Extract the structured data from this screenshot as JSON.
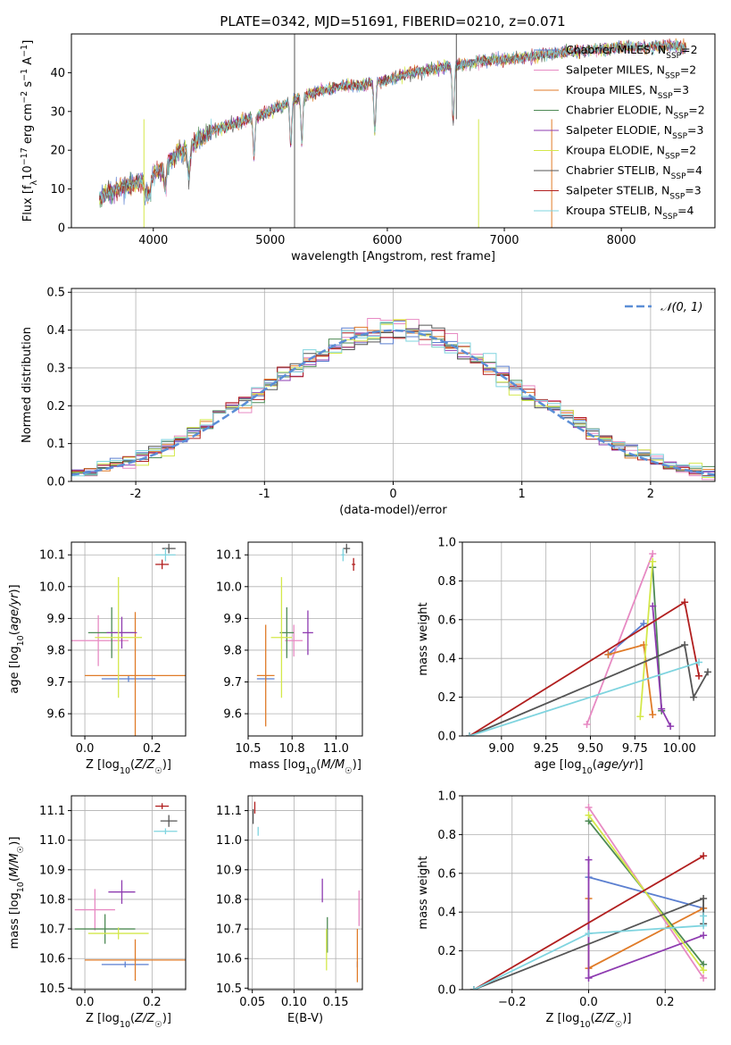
{
  "figure": {
    "title": "PLATE=0342, MJD=51691, FIBERID=0210, z=0.071",
    "models": [
      {
        "name": "Chabrier MILES",
        "nssp": "2",
        "color": "#5b7fd0"
      },
      {
        "name": "Salpeter MILES",
        "nssp": "2",
        "color": "#e78ac3"
      },
      {
        "name": "Kroupa MILES",
        "nssp": "3",
        "color": "#e07b28"
      },
      {
        "name": "Chabrier ELODIE",
        "nssp": "2",
        "color": "#4e8a55"
      },
      {
        "name": "Salpeter ELODIE",
        "nssp": "3",
        "color": "#8e3bb0"
      },
      {
        "name": "Kroupa ELODIE",
        "nssp": "2",
        "color": "#d4e84a"
      },
      {
        "name": "Chabrier STELIB",
        "nssp": "4",
        "color": "#555555"
      },
      {
        "name": "Salpeter STELIB",
        "nssp": "3",
        "color": "#b11f1f"
      },
      {
        "name": "Kroupa STELIB",
        "nssp": "4",
        "color": "#7fd4df"
      }
    ]
  },
  "chart_data": [
    {
      "id": "spectrum",
      "type": "line",
      "xlabel": "wavelength [Angstrom, rest frame]",
      "ylabel": "Flux [f_λ10^-17 erg cm^-2 s^-1 A^-1]",
      "xlim": [
        3300,
        8800
      ],
      "ylim": [
        0,
        50
      ],
      "xticks": [
        4000,
        5000,
        6000,
        7000,
        8000
      ],
      "yticks": [
        0,
        10,
        20,
        30,
        40
      ],
      "anchors_x": [
        3550,
        3700,
        3800,
        3900,
        4000,
        4100,
        4200,
        4300,
        4400,
        4500,
        4600,
        4800,
        5000,
        5200,
        5400,
        5600,
        5800,
        6000,
        6200,
        6400,
        6600,
        6800,
        7000,
        7200,
        7400,
        7600,
        7800,
        8000,
        8200,
        8400,
        8600
      ],
      "anchors_y": [
        8,
        10,
        11,
        12,
        14,
        16,
        19,
        21,
        23,
        25,
        26,
        28,
        30,
        33,
        35,
        36.5,
        37,
        38,
        40,
        41,
        42,
        43,
        43.5,
        44,
        45,
        45.5,
        46,
        46.5,
        46.5,
        47,
        46.5
      ],
      "absorption_lines_x": [
        3934,
        3969,
        4102,
        4304,
        4861,
        5175,
        5270,
        5893,
        6563
      ],
      "spikes": [
        {
          "x": 3920,
          "y": 0,
          "model": 5
        },
        {
          "x": 5207,
          "y": 0,
          "model": 6
        },
        {
          "x": 5207,
          "y": 50,
          "model": 6
        },
        {
          "x": 6780,
          "y": 0,
          "model": 5
        },
        {
          "x": 7405,
          "y": 0,
          "model": 2
        },
        {
          "x": 6590,
          "y": 50,
          "model": 6
        }
      ],
      "note": "Nine noisy model spectra overlapping; continuum anchor values estimated from axes."
    },
    {
      "id": "residual-histogram",
      "type": "bar",
      "xlabel": "(data-model)/error",
      "ylabel": "Normed distribution",
      "xlim": [
        -2.5,
        2.5
      ],
      "ylim": [
        0,
        0.51
      ],
      "xticks": [
        -2,
        -1,
        0,
        1,
        2
      ],
      "yticks": [
        0,
        0.1,
        0.2,
        0.3,
        0.4,
        0.5
      ],
      "bin_width": 0.1,
      "reference_curve": {
        "label": "𝒩(0, 1)",
        "color": "#5b8ed6",
        "mean": 0,
        "sigma": 1
      }
    },
    {
      "id": "age-vs-Z",
      "type": "scatter",
      "xlabel": "Z [log10(Z/Z☉)]",
      "ylabel": "age [log10(age/yr)]",
      "xlim": [
        -0.04,
        0.3
      ],
      "ylim": [
        9.53,
        10.14
      ],
      "xticks": [
        0.0,
        0.2
      ],
      "yticks": [
        9.6,
        9.7,
        9.8,
        9.9,
        10.0,
        10.1
      ],
      "points": [
        {
          "model": 0,
          "x": 0.13,
          "y": 9.71,
          "xerr": 0.08,
          "yerr": 0.01
        },
        {
          "model": 1,
          "x": 0.04,
          "y": 9.83,
          "xerr": 0.09,
          "yerr": 0.08
        },
        {
          "model": 2,
          "x": 0.15,
          "y": 9.72,
          "xerr": 0.15,
          "yerr": 0.2
        },
        {
          "model": 3,
          "x": 0.08,
          "y": 9.855,
          "xerr": 0.07,
          "yerr": 0.08
        },
        {
          "model": 4,
          "x": 0.11,
          "y": 9.855,
          "xerr": 0.045,
          "yerr": 0.05
        },
        {
          "model": 5,
          "x": 0.1,
          "y": 9.84,
          "xerr": 0.07,
          "yerr": 0.19
        },
        {
          "model": 6,
          "x": 0.25,
          "y": 10.12,
          "xerr": 0.02,
          "yerr": 0.015
        },
        {
          "model": 7,
          "x": 0.23,
          "y": 10.07,
          "xerr": 0.02,
          "yerr": 0.015
        },
        {
          "model": 8,
          "x": 0.24,
          "y": 10.1,
          "xerr": 0.03,
          "yerr": 0.02
        }
      ]
    },
    {
      "id": "age-vs-mass",
      "type": "scatter",
      "xlabel": "mass [log10(M/M☉)]",
      "ylabel": "",
      "xlim": [
        10.5,
        11.15
      ],
      "ylim": [
        9.53,
        10.14
      ],
      "xticks": [
        10.5,
        10.75,
        11.0
      ],
      "yticks": [
        9.6,
        9.7,
        9.8,
        9.9,
        10.0,
        10.1
      ],
      "points": [
        {
          "model": 0,
          "x": 10.6,
          "y": 9.71,
          "xerr": 0.05,
          "yerr": 0.01
        },
        {
          "model": 1,
          "x": 10.76,
          "y": 9.83,
          "xerr": 0.05,
          "yerr": 0.05
        },
        {
          "model": 2,
          "x": 10.6,
          "y": 9.72,
          "xerr": 0.05,
          "yerr": 0.16
        },
        {
          "model": 3,
          "x": 10.72,
          "y": 9.855,
          "xerr": 0.04,
          "yerr": 0.08
        },
        {
          "model": 4,
          "x": 10.84,
          "y": 9.855,
          "xerr": 0.03,
          "yerr": 0.07
        },
        {
          "model": 5,
          "x": 10.69,
          "y": 9.84,
          "xerr": 0.06,
          "yerr": 0.19
        },
        {
          "model": 6,
          "x": 11.06,
          "y": 10.12,
          "xerr": 0.02,
          "yerr": 0.015
        },
        {
          "model": 7,
          "x": 11.1,
          "y": 10.07,
          "xerr": 0.01,
          "yerr": 0.02
        },
        {
          "model": 8,
          "x": 11.04,
          "y": 10.1,
          "xerr": 0.01,
          "yerr": 0.02
        }
      ]
    },
    {
      "id": "massweight-vs-age",
      "type": "line",
      "xlabel": "age [log10(age/yr)]",
      "ylabel": "mass weight",
      "xlim": [
        8.78,
        10.2
      ],
      "ylim": [
        0,
        1
      ],
      "xticks": [
        9.0,
        9.25,
        9.5,
        9.75,
        10.0
      ],
      "yticks": [
        0.0,
        0.2,
        0.4,
        0.6,
        0.8,
        1.0
      ],
      "lines": [
        {
          "model": 0,
          "x": [
            9.6,
            9.8
          ],
          "y": [
            0.42,
            0.58
          ]
        },
        {
          "model": 1,
          "x": [
            9.48,
            9.85
          ],
          "y": [
            0.06,
            0.94
          ]
        },
        {
          "model": 2,
          "x": [
            9.6,
            9.8,
            9.85
          ],
          "y": [
            0.42,
            0.47,
            0.11
          ]
        },
        {
          "model": 3,
          "x": [
            9.85,
            9.9
          ],
          "y": [
            0.87,
            0.13
          ]
        },
        {
          "model": 4,
          "x": [
            9.85,
            9.9,
            9.95
          ],
          "y": [
            0.67,
            0.14,
            0.05
          ]
        },
        {
          "model": 5,
          "x": [
            9.78,
            9.85
          ],
          "y": [
            0.1,
            0.9
          ]
        },
        {
          "model": 6,
          "x": [
            8.82,
            10.03,
            10.08,
            10.16
          ],
          "y": [
            0,
            0.47,
            0.2,
            0.33
          ]
        },
        {
          "model": 7,
          "x": [
            8.82,
            10.03,
            10.11
          ],
          "y": [
            0,
            0.69,
            0.31
          ]
        },
        {
          "model": 8,
          "x": [
            8.82,
            10.11
          ],
          "y": [
            0,
            0.38
          ]
        }
      ]
    },
    {
      "id": "mass-vs-Z",
      "type": "scatter",
      "xlabel": "Z [log10(Z/Z☉)]",
      "ylabel": "mass [log10(M/M☉)]",
      "xlim": [
        -0.04,
        0.3
      ],
      "ylim": [
        10.495,
        11.15
      ],
      "xticks": [
        0.0,
        0.2
      ],
      "yticks": [
        10.5,
        10.6,
        10.7,
        10.8,
        10.9,
        11.0,
        11.1
      ],
      "points": [
        {
          "model": 0,
          "x": 0.12,
          "y": 10.58,
          "xerr": 0.07,
          "yerr": 0.01
        },
        {
          "model": 1,
          "x": 0.03,
          "y": 10.765,
          "xerr": 0.06,
          "yerr": 0.07
        },
        {
          "model": 2,
          "x": 0.15,
          "y": 10.595,
          "xerr": 0.15,
          "yerr": 0.07
        },
        {
          "model": 3,
          "x": 0.06,
          "y": 10.7,
          "xerr": 0.09,
          "yerr": 0.05
        },
        {
          "model": 4,
          "x": 0.11,
          "y": 10.825,
          "xerr": 0.04,
          "yerr": 0.04
        },
        {
          "model": 5,
          "x": 0.1,
          "y": 10.685,
          "xerr": 0.09,
          "yerr": 0.02
        },
        {
          "model": 6,
          "x": 0.25,
          "y": 11.065,
          "xerr": 0.025,
          "yerr": 0.02
        },
        {
          "model": 7,
          "x": 0.23,
          "y": 11.115,
          "xerr": 0.02,
          "yerr": 0.01
        },
        {
          "model": 8,
          "x": 0.24,
          "y": 11.03,
          "xerr": 0.035,
          "yerr": 0.01
        }
      ]
    },
    {
      "id": "mass-vs-EBV",
      "type": "scatter",
      "xlabel": "E(B-V)",
      "ylabel": "",
      "xlim": [
        0.045,
        0.182
      ],
      "ylim": [
        10.495,
        11.15
      ],
      "xticks": [
        0.05,
        0.1,
        0.15
      ],
      "yticks": [
        10.5,
        10.6,
        10.7,
        10.8,
        10.9,
        11.0,
        11.1
      ],
      "points": [
        {
          "model": 0,
          "x": 0.176,
          "y": 10.58,
          "xerr": 0,
          "yerr": 0.01
        },
        {
          "model": 1,
          "x": 0.178,
          "y": 10.77,
          "xerr": 0,
          "yerr": 0.06
        },
        {
          "model": 2,
          "x": 0.176,
          "y": 10.61,
          "xerr": 0,
          "yerr": 0.09
        },
        {
          "model": 3,
          "x": 0.14,
          "y": 10.68,
          "xerr": 0,
          "yerr": 0.06
        },
        {
          "model": 4,
          "x": 0.134,
          "y": 10.83,
          "xerr": 0,
          "yerr": 0.04
        },
        {
          "model": 5,
          "x": 0.139,
          "y": 10.63,
          "xerr": 0,
          "yerr": 0.07
        },
        {
          "model": 6,
          "x": 0.051,
          "y": 11.08,
          "xerr": 0,
          "yerr": 0.025
        },
        {
          "model": 7,
          "x": 0.053,
          "y": 11.11,
          "xerr": 0,
          "yerr": 0.02
        },
        {
          "model": 8,
          "x": 0.057,
          "y": 11.03,
          "xerr": 0,
          "yerr": 0.015
        }
      ]
    },
    {
      "id": "massweight-vs-Z",
      "type": "line",
      "xlabel": "Z [log10(Z/Z☉)]",
      "ylabel": "mass weight",
      "xlim": [
        -0.33,
        0.33
      ],
      "ylim": [
        0,
        1
      ],
      "xticks": [
        -0.2,
        0.0,
        0.2
      ],
      "yticks": [
        0.0,
        0.2,
        0.4,
        0.6,
        0.8,
        1.0
      ],
      "lines": [
        {
          "model": 0,
          "x": [
            0.0,
            0.3
          ],
          "y": [
            0.58,
            0.42
          ]
        },
        {
          "model": 1,
          "x": [
            0.0,
            0.3
          ],
          "y": [
            0.94,
            0.06
          ]
        },
        {
          "model": 2,
          "x": [
            0.0,
            0.0,
            0.3
          ],
          "y": [
            0.47,
            0.11,
            0.42
          ]
        },
        {
          "model": 3,
          "x": [
            0.0,
            0.3
          ],
          "y": [
            0.87,
            0.13
          ]
        },
        {
          "model": 4,
          "x": [
            0.0,
            0.0,
            0.3
          ],
          "y": [
            0.67,
            0.06,
            0.28
          ]
        },
        {
          "model": 5,
          "x": [
            0.0,
            0.3
          ],
          "y": [
            0.9,
            0.1
          ]
        },
        {
          "model": 6,
          "x": [
            -0.3,
            0.3,
            0.3
          ],
          "y": [
            0,
            0.47,
            0.34
          ]
        },
        {
          "model": 7,
          "x": [
            -0.3,
            0.3
          ],
          "y": [
            0,
            0.69
          ]
        },
        {
          "model": 8,
          "x": [
            -0.3,
            0.0,
            0.3,
            0.3
          ],
          "y": [
            0,
            0.29,
            0.33,
            0.38
          ]
        }
      ]
    }
  ]
}
